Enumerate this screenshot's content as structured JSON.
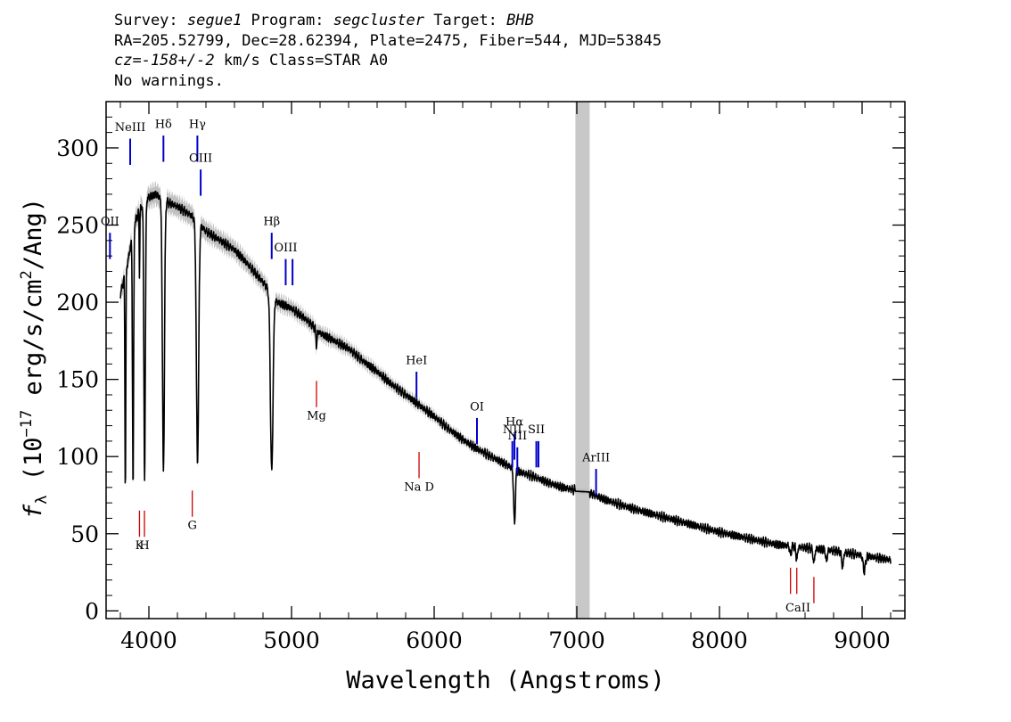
{
  "header": {
    "survey_label": "Survey: ",
    "survey": "segue1",
    "program_label": " Program: ",
    "program": "segcluster",
    "target_label": " Target: ",
    "target": "BHB",
    "line2": "RA=205.52799, Dec=28.62394, Plate=2475, Fiber=544, MJD=53845",
    "cz_value": "cz=-158+/-2",
    "cz_rest": " km/s Class=STAR A0",
    "line4": "No warnings."
  },
  "colors": {
    "spectrum": "#000000",
    "error_band": "#c0c0c0",
    "masked_region": "#c8c8c8",
    "emission_lines": "#0000cc",
    "absorption_lines": "#cc0000"
  },
  "chart_data": {
    "type": "line",
    "xlabel": "Wavelength (Angstroms)",
    "ylabel_prefix": "f",
    "ylabel_sub": "λ",
    "ylabel_body": " (10",
    "ylabel_exp": "−17",
    "ylabel_mid": " erg/s/cm",
    "ylabel_exp2": "2",
    "ylabel_end": "/Ang)",
    "xlim": [
      3700,
      9300
    ],
    "ylim": [
      -5,
      330
    ],
    "x_ticks": [
      4000,
      5000,
      6000,
      7000,
      8000,
      9000
    ],
    "y_ticks": [
      0,
      50,
      100,
      150,
      200,
      250,
      300
    ],
    "masked_region": [
      6990,
      7090
    ],
    "continuum_nodes": [
      [
        3800,
        205
      ],
      [
        3850,
        225
      ],
      [
        3900,
        252
      ],
      [
        3950,
        262
      ],
      [
        4000,
        268
      ],
      [
        4050,
        270
      ],
      [
        4100,
        266
      ],
      [
        4200,
        262
      ],
      [
        4300,
        256
      ],
      [
        4400,
        246
      ],
      [
        4500,
        240
      ],
      [
        4600,
        234
      ],
      [
        4700,
        224
      ],
      [
        4800,
        213
      ],
      [
        4900,
        200
      ],
      [
        5000,
        196
      ],
      [
        5100,
        189
      ],
      [
        5200,
        180
      ],
      [
        5300,
        175
      ],
      [
        5400,
        170
      ],
      [
        5500,
        162
      ],
      [
        5600,
        155
      ],
      [
        5700,
        147
      ],
      [
        5800,
        140
      ],
      [
        5900,
        133
      ],
      [
        6000,
        126
      ],
      [
        6100,
        118
      ],
      [
        6200,
        111
      ],
      [
        6300,
        105
      ],
      [
        6400,
        100
      ],
      [
        6500,
        95
      ],
      [
        6600,
        90
      ],
      [
        6700,
        87
      ],
      [
        6800,
        83
      ],
      [
        6900,
        80
      ],
      [
        7000,
        78
      ],
      [
        7100,
        76
      ],
      [
        7200,
        72
      ],
      [
        7400,
        66
      ],
      [
        7600,
        61
      ],
      [
        7800,
        56
      ],
      [
        8000,
        51
      ],
      [
        8200,
        47
      ],
      [
        8400,
        43
      ],
      [
        8600,
        41
      ],
      [
        8800,
        39
      ],
      [
        9000,
        36
      ],
      [
        9200,
        33
      ]
    ],
    "absorption_features": [
      [
        3835,
        140,
        3
      ],
      [
        3889,
        165,
        4
      ],
      [
        3934,
        40,
        2
      ],
      [
        3970,
        180,
        5
      ],
      [
        4102,
        175,
        7
      ],
      [
        4341,
        155,
        8
      ],
      [
        4861,
        115,
        9
      ],
      [
        5175,
        10,
        4
      ],
      [
        6563,
        35,
        6
      ],
      [
        8498,
        6,
        5
      ],
      [
        8542,
        9,
        5
      ],
      [
        8662,
        9,
        6
      ],
      [
        8750,
        8,
        5
      ],
      [
        8863,
        10,
        6
      ],
      [
        9015,
        10,
        8
      ]
    ],
    "emission_lines": [
      {
        "name": "OII",
        "wavelength": 3727,
        "label_y": 250,
        "top": 245,
        "bottom": 228
      },
      {
        "name": "NeIII",
        "wavelength": 3869,
        "label_y": 311,
        "top": 306,
        "bottom": 289
      },
      {
        "name": "Hδ",
        "wavelength": 4102,
        "label_y": 313,
        "top": 308,
        "bottom": 291
      },
      {
        "name": "Hγ",
        "wavelength": 4340,
        "label_y": 313,
        "top": 308,
        "bottom": 291
      },
      {
        "name": "OIII",
        "wavelength": 4363,
        "label_y": 291,
        "top": 286,
        "bottom": 269
      },
      {
        "name": "Hβ",
        "wavelength": 4861,
        "label_y": 250,
        "top": 245,
        "bottom": 228
      },
      {
        "name": "OIII",
        "wavelength": 4959,
        "label_y": 233,
        "top": 228,
        "bottom": 211
      },
      {
        "name": "OIII",
        "wavelength": 5007,
        "label_y": 0,
        "top": 228,
        "bottom": 211
      },
      {
        "name": "HeI",
        "wavelength": 5876,
        "label_y": 160,
        "top": 155,
        "bottom": 138
      },
      {
        "name": "OI",
        "wavelength": 6300,
        "label_y": 130,
        "top": 125,
        "bottom": 108
      },
      {
        "name": "NII",
        "wavelength": 6548,
        "label_y": 115,
        "top": 110,
        "bottom": 93
      },
      {
        "name": "Hα",
        "wavelength": 6563,
        "label_y": 120,
        "top": 115,
        "bottom": 98
      },
      {
        "name": "NII",
        "wavelength": 6583,
        "label_y": 111,
        "top": 106,
        "bottom": 89
      },
      {
        "name": "SII",
        "wavelength": 6716,
        "label_y": 115,
        "top": 110,
        "bottom": 93
      },
      {
        "name": "SII",
        "wavelength": 6731,
        "label_y": 0,
        "top": 110,
        "bottom": 93
      },
      {
        "name": "ArIII",
        "wavelength": 7135,
        "label_y": 97,
        "top": 92,
        "bottom": 75
      }
    ],
    "absorption_lines": [
      {
        "name": "K",
        "wavelength": 3934,
        "label_y": 40,
        "top": 65,
        "bottom": 48
      },
      {
        "name": "H",
        "wavelength": 3969,
        "label_y": 40,
        "top": 65,
        "bottom": 48
      },
      {
        "name": "G",
        "wavelength": 4304,
        "label_y": 53,
        "top": 78,
        "bottom": 61
      },
      {
        "name": "Mg",
        "wavelength": 5175,
        "label_y": 124,
        "top": 149,
        "bottom": 132
      },
      {
        "name": "Na D",
        "wavelength": 5894,
        "label_y": 78,
        "top": 103,
        "bottom": 86
      },
      {
        "name": "CaII",
        "wavelength": 8498,
        "label_y": 0,
        "top": 28,
        "bottom": 11
      },
      {
        "name": "CaII",
        "wavelength": 8542,
        "label_y": 0,
        "top": 28,
        "bottom": 11
      },
      {
        "name": "CaII",
        "wavelength": 8662,
        "label_y": 0,
        "top": 22,
        "bottom": 5
      }
    ]
  }
}
